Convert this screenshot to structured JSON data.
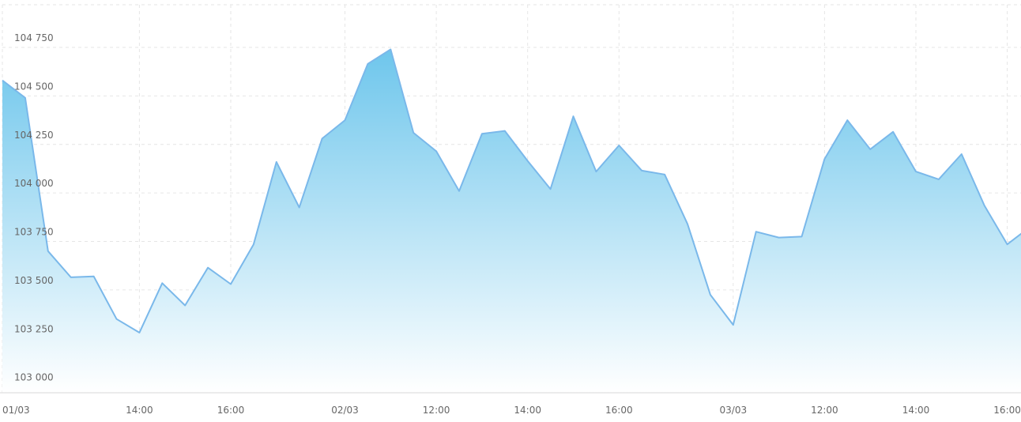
{
  "chart_data": {
    "type": "area",
    "title": "",
    "xlabel": "",
    "ylabel": "",
    "ylim": [
      102970,
      104970
    ],
    "y_ticks": [
      103000,
      103250,
      103500,
      103750,
      104000,
      104250,
      104500,
      104750
    ],
    "y_tick_labels": [
      "103 000",
      "103 250",
      "103 500",
      "103 750",
      "104 000",
      "104 250",
      "104 500",
      "104 750"
    ],
    "x_ticks": [
      {
        "label": "01/03",
        "index": 0
      },
      {
        "label": "14:00",
        "index": 6
      },
      {
        "label": "16:00",
        "index": 10
      },
      {
        "label": "02/03",
        "index": 15
      },
      {
        "label": "12:00",
        "index": 19
      },
      {
        "label": "14:00",
        "index": 23
      },
      {
        "label": "16:00",
        "index": 27
      },
      {
        "label": "03/03",
        "index": 32
      },
      {
        "label": "12:00",
        "index": 36
      },
      {
        "label": "14:00",
        "index": 40
      },
      {
        "label": "16:00",
        "index": 44
      }
    ],
    "grid": true,
    "legend": "none",
    "colors": {
      "line": "#7ab8ea",
      "fill_top": "#6ec6ec",
      "fill_bottom": "#ffffff"
    },
    "values": [
      104580,
      104490,
      103700,
      103565,
      103570,
      103350,
      103280,
      103535,
      103420,
      103615,
      103530,
      103735,
      104160,
      103925,
      104280,
      104375,
      104665,
      104740,
      104310,
      104215,
      104010,
      104305,
      104320,
      104165,
      104020,
      104395,
      104110,
      104245,
      104115,
      104095,
      103840,
      103475,
      103320,
      103800,
      103770,
      103775,
      104175,
      104375,
      104225,
      104315,
      104110,
      104070,
      104200,
      103935,
      103735,
      103825
    ]
  }
}
